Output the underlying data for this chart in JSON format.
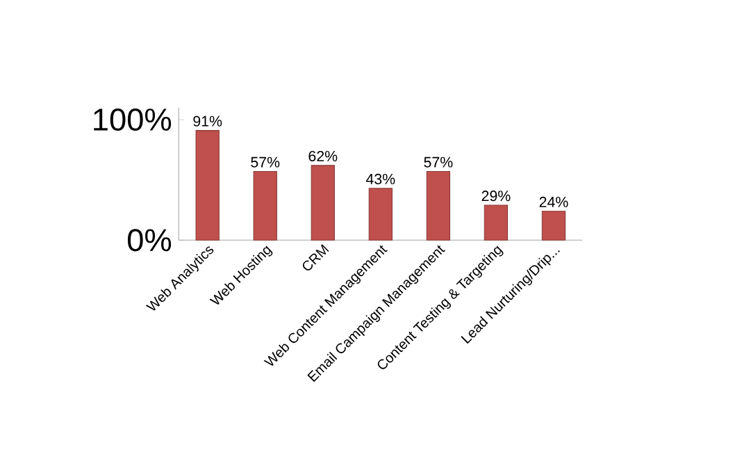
{
  "chart_data": {
    "type": "bar",
    "categories": [
      "Web Analytics",
      "Web Hosting",
      "CRM",
      "Web Content Management",
      "Email Campaign Management",
      "Content Testing & Targeting",
      "Lead Nurturing/Drip..."
    ],
    "values": [
      91,
      57,
      62,
      43,
      57,
      29,
      24
    ],
    "value_labels": [
      "91%",
      "57%",
      "62%",
      "43%",
      "57%",
      "29%",
      "24%"
    ],
    "color": "#c0504d",
    "ylim": [
      0,
      110
    ],
    "yticks": [
      {
        "value": 0,
        "label": "0%"
      },
      {
        "value": 100,
        "label": "100%"
      }
    ],
    "grid": false
  }
}
